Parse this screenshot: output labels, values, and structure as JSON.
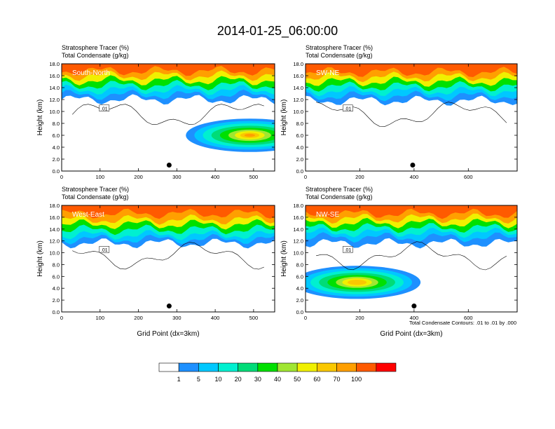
{
  "title": "2014-01-25_06:00:00",
  "footnote": "Total Condensate Contours: .01 to .01 by .000",
  "palette": [
    "#ffffff",
    "#1e90ff",
    "#00c8ff",
    "#00f0d0",
    "#00dc78",
    "#00e000",
    "#a0e632",
    "#f0f000",
    "#fac800",
    "#ff9f00",
    "#ff5a00",
    "#ff0000"
  ],
  "colorbar": {
    "labels": [
      "1",
      "5",
      "10",
      "20",
      "30",
      "40",
      "50",
      "60",
      "70",
      "100"
    ]
  },
  "panel_texts": {
    "header_line1": "Stratosphere Tracer   (%)",
    "header_line2": "Total Condensate   (g/kg)",
    "ylabel": "Height (km)",
    "xlabel": "Grid Point (dx=3km)",
    "contour_label": ".01"
  },
  "chart_data": [
    {
      "type": "contour",
      "name": "South-North",
      "title": "South-North",
      "xlabel": "",
      "ylabel": "Height (km)",
      "xlim": [
        0,
        555
      ],
      "ylim": [
        0,
        18
      ],
      "xticks": [
        0,
        100,
        200,
        300,
        400,
        500
      ],
      "yticks": [
        "0.0",
        "2.0",
        "4.0",
        "6.0",
        "8.0",
        "10.0",
        "12.0",
        "14.0",
        "16.0",
        "18.0"
      ],
      "tracer_pct_bands": [
        {
          "level": 100,
          "bottom_km": 16.8
        },
        {
          "level": 70,
          "bottom_km": 16.0
        },
        {
          "level": 50,
          "bottom_km": 15.2
        },
        {
          "level": 30,
          "bottom_km": 14.4
        },
        {
          "level": 10,
          "bottom_km": 13.6
        },
        {
          "level": 5,
          "bottom_km": 12.8
        },
        {
          "level": 1,
          "bottom_km": 12.0
        }
      ],
      "tracer_plumes": [
        {
          "x": 490,
          "height_km": 6.0,
          "peak_pct": 70
        }
      ],
      "condensate_contour_gkg": 0.01,
      "marker": {
        "x": 280,
        "height_km": 1.0
      }
    },
    {
      "type": "contour",
      "name": "SW-NE",
      "title": "SW-NE",
      "xlabel": "",
      "ylabel": "Height (km)",
      "xlim": [
        0,
        780
      ],
      "ylim": [
        0,
        18
      ],
      "xticks": [
        0,
        200,
        400,
        600
      ],
      "yticks": [
        "0.0",
        "2.0",
        "4.0",
        "6.0",
        "8.0",
        "10.0",
        "12.0",
        "14.0",
        "16.0",
        "18.0"
      ],
      "tracer_pct_bands": [
        {
          "level": 100,
          "bottom_km": 16.6
        },
        {
          "level": 70,
          "bottom_km": 15.8
        },
        {
          "level": 50,
          "bottom_km": 15.0
        },
        {
          "level": 30,
          "bottom_km": 14.2
        },
        {
          "level": 10,
          "bottom_km": 13.4
        },
        {
          "level": 5,
          "bottom_km": 12.6
        },
        {
          "level": 1,
          "bottom_km": 11.8
        }
      ],
      "tracer_plumes": [],
      "condensate_contour_gkg": 0.01,
      "marker": {
        "x": 395,
        "height_km": 1.0
      }
    },
    {
      "type": "contour",
      "name": "West-East",
      "title": "West-East",
      "xlabel": "Grid Point (dx=3km)",
      "ylabel": "Height (km)",
      "xlim": [
        0,
        555
      ],
      "ylim": [
        0,
        18
      ],
      "xticks": [
        0,
        100,
        200,
        300,
        400,
        500
      ],
      "yticks": [
        "0.0",
        "2.0",
        "4.0",
        "6.0",
        "8.0",
        "10.0",
        "12.0",
        "14.0",
        "16.0",
        "18.0"
      ],
      "tracer_pct_bands": [
        {
          "level": 100,
          "bottom_km": 16.6
        },
        {
          "level": 70,
          "bottom_km": 15.6
        },
        {
          "level": 50,
          "bottom_km": 14.8
        },
        {
          "level": 30,
          "bottom_km": 13.9
        },
        {
          "level": 10,
          "bottom_km": 13.0
        },
        {
          "level": 5,
          "bottom_km": 12.3
        },
        {
          "level": 1,
          "bottom_km": 11.6
        }
      ],
      "tracer_plumes": [],
      "condensate_contour_gkg": 0.01,
      "marker": {
        "x": 280,
        "height_km": 1.0
      }
    },
    {
      "type": "contour",
      "name": "NW-SE",
      "title": "NW-SE",
      "xlabel": "Grid Point (dx=3km)",
      "ylabel": "Height (km)",
      "xlim": [
        0,
        780
      ],
      "ylim": [
        0,
        18
      ],
      "xticks": [
        0,
        200,
        400,
        600
      ],
      "yticks": [
        "0.0",
        "2.0",
        "4.0",
        "6.0",
        "8.0",
        "10.0",
        "12.0",
        "14.0",
        "16.0",
        "18.0"
      ],
      "tracer_pct_bands": [
        {
          "level": 100,
          "bottom_km": 16.6
        },
        {
          "level": 70,
          "bottom_km": 15.8
        },
        {
          "level": 50,
          "bottom_km": 15.0
        },
        {
          "level": 30,
          "bottom_km": 14.2
        },
        {
          "level": 10,
          "bottom_km": 13.4
        },
        {
          "level": 5,
          "bottom_km": 12.6
        },
        {
          "level": 1,
          "bottom_km": 11.6
        }
      ],
      "tracer_plumes": [
        {
          "x": 190,
          "height_km": 5.0,
          "peak_pct": 60
        }
      ],
      "condensate_contour_gkg": 0.01,
      "marker": {
        "x": 400,
        "height_km": 1.0
      }
    }
  ]
}
